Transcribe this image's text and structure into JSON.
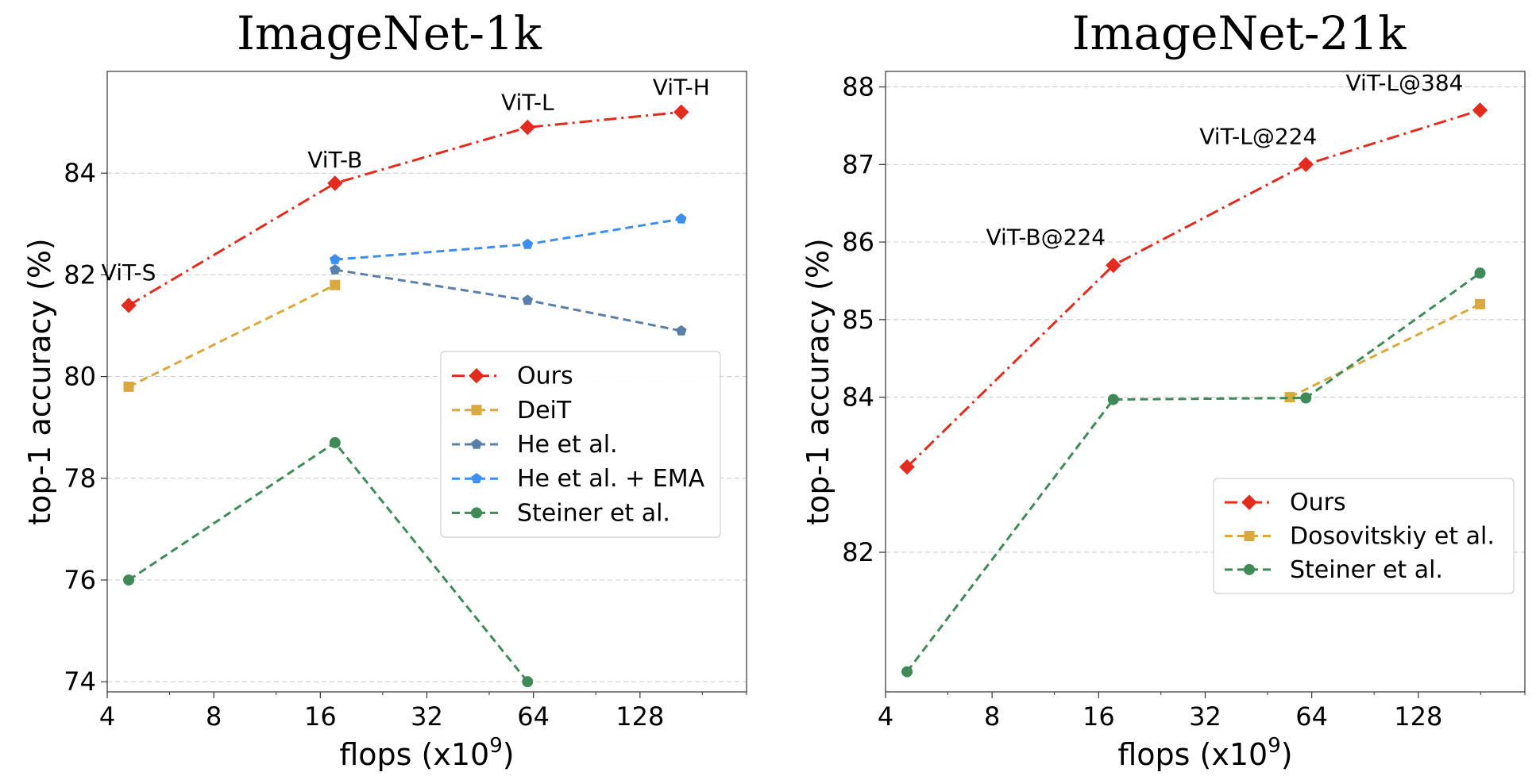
{
  "chart_data": [
    {
      "type": "line",
      "title": "ImageNet-1k",
      "xlabel": "flops (x10⁹)",
      "ylabel": "top-1 accuracy (%)",
      "x_scale": "log2",
      "xlim": [
        4,
        256
      ],
      "ylim": [
        73.8,
        86.0
      ],
      "xticks": [
        4,
        8,
        16,
        32,
        64,
        128
      ],
      "yticks": [
        74,
        76,
        78,
        80,
        82,
        84
      ],
      "grid": "horizontal",
      "legend_position": "center-right",
      "series": [
        {
          "name": "Ours",
          "color": "#e32b1e",
          "dash": "dashdot",
          "marker": "diamond",
          "x": [
            4.6,
            17.6,
            61.6,
            167.4
          ],
          "y": [
            81.4,
            83.8,
            84.9,
            85.2
          ]
        },
        {
          "name": "DeiT",
          "color": "#d9a93d",
          "dash": "dashed",
          "marker": "square",
          "x": [
            4.6,
            17.6
          ],
          "y": [
            79.8,
            81.8
          ]
        },
        {
          "name": "He et al.",
          "color": "#5a7fa8",
          "dash": "dashed",
          "marker": "pentagon",
          "x": [
            17.6,
            61.6,
            167.4
          ],
          "y": [
            82.1,
            81.5,
            80.9
          ]
        },
        {
          "name": "He et al. + EMA",
          "color": "#3d8ef0",
          "dash": "dashed",
          "marker": "pentagon",
          "x": [
            17.6,
            61.6,
            167.4
          ],
          "y": [
            82.3,
            82.6,
            83.1
          ]
        },
        {
          "name": "Steiner et al.",
          "color": "#3f8a56",
          "dash": "dashed",
          "marker": "circle",
          "x": [
            4.6,
            17.6,
            61.6
          ],
          "y": [
            76.0,
            78.7,
            74.0
          ]
        }
      ],
      "annotations": [
        {
          "text": "ViT-S",
          "x": 4.6,
          "y": 81.4
        },
        {
          "text": "ViT-B",
          "x": 17.6,
          "y": 83.8
        },
        {
          "text": "ViT-L",
          "x": 61.6,
          "y": 84.9
        },
        {
          "text": "ViT-H",
          "x": 167.4,
          "y": 85.2
        }
      ]
    },
    {
      "type": "line",
      "title": "ImageNet-21k",
      "xlabel": "flops (x10⁹)",
      "ylabel": "top-1 accuracy (%)",
      "x_scale": "log2",
      "xlim": [
        4,
        256
      ],
      "ylim": [
        80.2,
        88.2
      ],
      "xticks": [
        4,
        8,
        16,
        32,
        64,
        128
      ],
      "yticks": [
        82,
        84,
        85,
        86,
        87,
        88
      ],
      "grid": "horizontal",
      "legend_position": "lower-right",
      "series": [
        {
          "name": "Ours",
          "color": "#e32b1e",
          "dash": "dashdot",
          "marker": "diamond",
          "x": [
            4.6,
            17.6,
            61.6,
            191.2
          ],
          "y": [
            83.1,
            85.7,
            87.0,
            87.7
          ]
        },
        {
          "name": "Dosovitskiy et al.",
          "color": "#d9a93d",
          "dash": "dashed",
          "marker": "square",
          "x": [
            55.5,
            191.2
          ],
          "y": [
            84.0,
            85.2
          ]
        },
        {
          "name": "Steiner et al.",
          "color": "#3f8a56",
          "dash": "dashed",
          "marker": "circle",
          "x": [
            4.6,
            17.6,
            61.6,
            191.2
          ],
          "y": [
            80.46,
            83.97,
            83.99,
            85.6
          ]
        }
      ],
      "annotations": [
        {
          "text": "ViT-B@224",
          "x": 17.6,
          "y": 85.7
        },
        {
          "text": "ViT-L@224",
          "x": 61.6,
          "y": 87.0
        },
        {
          "text": "ViT-L@384",
          "x": 191.2,
          "y": 87.7
        }
      ]
    }
  ]
}
